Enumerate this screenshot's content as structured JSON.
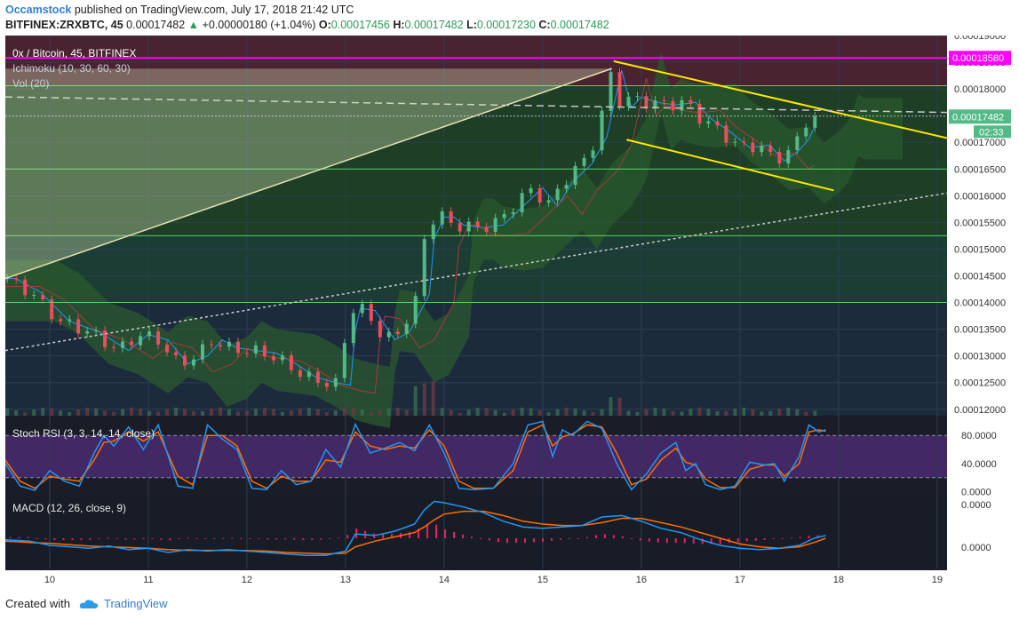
{
  "header": {
    "author": "Occamstock",
    "published": "published on TradingView.com, July 17, 2018 21:42 UTC",
    "ticker": "BITFINEX:ZRXBTC, 45",
    "last": "0.00017482",
    "change": "+0.00000180 (+1.04%)",
    "o_label": "O:",
    "o": "0.00017456",
    "h_label": "H:",
    "h": "0.00017482",
    "l_label": "L:",
    "l": "0.00017230",
    "c_label": "C:",
    "c": "0.00017482"
  },
  "footer": {
    "created_with": "Created with",
    "brand": "TradingView"
  },
  "chart_data": {
    "type": "candlestick",
    "legend": [
      "0x / Bitcoin, 45, BITFINEX",
      "Ichimoku (10, 30, 60, 30)",
      "Vol (20)"
    ],
    "y_ticks": [
      0.00012,
      0.000125,
      0.00013,
      0.000135,
      0.00014,
      0.000145,
      0.00015,
      0.000155,
      0.00016,
      0.000165,
      0.00017,
      0.000175,
      0.00018,
      0.000185,
      0.00019
    ],
    "y_tick_labels": [
      "0.00012000",
      "0.00012500",
      "0.00013000",
      "0.00013500",
      "0.00014000",
      "0.00014500",
      "0.00015000",
      "0.00015500",
      "0.00016000",
      "0.00016500",
      "0.00017000",
      "0.00017500",
      "0.00018000",
      "0.00018500",
      "0.00019000"
    ],
    "ylim": [
      0.0001188,
      0.00019
    ],
    "x_ticks": [
      "10",
      "11",
      "12",
      "13",
      "14",
      "15",
      "16",
      "17",
      "18",
      "19"
    ],
    "xlim": [
      9.55,
      19.1
    ],
    "price_label": "0.00017482",
    "countdown": "02:33",
    "level_label": "0.00018580",
    "levels": [
      0.0001858,
      0.0001806,
      0.0001749,
      0.000165,
      0.0001525,
      0.00014
    ],
    "close_path": [
      [
        9.55,
        0.0001445
      ],
      [
        9.8,
        0.000142
      ],
      [
        10.1,
        0.0001365
      ],
      [
        10.4,
        0.0001345
      ],
      [
        10.7,
        0.000131
      ],
      [
        10.9,
        0.000134
      ],
      [
        11.1,
        0.000133
      ],
      [
        11.3,
        0.0001285
      ],
      [
        11.5,
        0.00013
      ],
      [
        11.65,
        0.000133
      ],
      [
        11.8,
        0.0001315
      ],
      [
        12.0,
        0.000131
      ],
      [
        12.2,
        0.0001305
      ],
      [
        12.4,
        0.0001285
      ],
      [
        12.6,
        0.000126
      ],
      [
        12.8,
        0.000125
      ],
      [
        12.95,
        0.0001245
      ],
      [
        13.02,
        0.000139
      ],
      [
        13.2,
        0.0001385
      ],
      [
        13.4,
        0.000133
      ],
      [
        13.55,
        0.0001345
      ],
      [
        13.65,
        0.000138
      ],
      [
        13.75,
        0.0001415
      ],
      [
        13.8,
        0.000152
      ],
      [
        13.9,
        0.000156
      ],
      [
        14.0,
        0.000156
      ],
      [
        14.1,
        0.0001545
      ],
      [
        14.3,
        0.000154
      ],
      [
        14.5,
        0.0001545
      ],
      [
        14.7,
        0.000158
      ],
      [
        14.9,
        0.0001615
      ],
      [
        15.05,
        0.000158
      ],
      [
        15.2,
        0.0001625
      ],
      [
        15.4,
        0.000166
      ],
      [
        15.55,
        0.000171
      ],
      [
        15.7,
        0.0001835
      ],
      [
        15.8,
        0.0001765
      ],
      [
        15.9,
        0.0001785
      ],
      [
        16.05,
        0.0001775
      ],
      [
        16.25,
        0.000177
      ],
      [
        16.45,
        0.0001775
      ],
      [
        16.6,
        0.0001745
      ],
      [
        16.8,
        0.000172
      ],
      [
        17.0,
        0.000169
      ],
      [
        17.2,
        0.0001695
      ],
      [
        17.35,
        0.0001665
      ],
      [
        17.5,
        0.0001685
      ],
      [
        17.62,
        0.000171
      ],
      [
        17.7,
        0.0001755
      ],
      [
        17.76,
        0.0001748
      ]
    ],
    "trendlines": [
      {
        "from": [
          15.72,
          0.0001852
        ],
        "to": [
          19.1,
          0.0001708
        ]
      },
      {
        "from": [
          15.85,
          0.0001705
        ],
        "to": [
          17.95,
          0.000161
        ]
      },
      {
        "from": [
          9.55,
          0.0001445
        ],
        "to": [
          15.7,
          0.0001838
        ]
      },
      {
        "from": [
          9.55,
          0.0001785
        ],
        "to": [
          19.1,
          0.0001756
        ]
      },
      {
        "from": [
          9.55,
          0.000131
        ],
        "to": [
          19.1,
          0.0001605
        ]
      }
    ],
    "stoch_rsi": {
      "label": "Stoch RSI (3, 3, 14, 14, close)",
      "y_tick_labels": [
        "80.0000",
        "40.0000",
        "0.0000"
      ],
      "y_ticks": [
        80,
        40,
        0
      ],
      "ylim": [
        -3,
        103
      ],
      "bands": [
        80,
        20
      ],
      "k": [
        [
          9.55,
          40
        ],
        [
          9.7,
          8
        ],
        [
          9.85,
          2
        ],
        [
          10.0,
          30
        ],
        [
          10.15,
          15
        ],
        [
          10.3,
          8
        ],
        [
          10.45,
          55
        ],
        [
          10.55,
          80
        ],
        [
          10.65,
          65
        ],
        [
          10.8,
          92
        ],
        [
          10.95,
          60
        ],
        [
          11.1,
          95
        ],
        [
          11.3,
          8
        ],
        [
          11.45,
          5
        ],
        [
          11.6,
          95
        ],
        [
          11.75,
          75
        ],
        [
          11.9,
          60
        ],
        [
          12.05,
          5
        ],
        [
          12.2,
          3
        ],
        [
          12.35,
          30
        ],
        [
          12.5,
          10
        ],
        [
          12.65,
          15
        ],
        [
          12.8,
          60
        ],
        [
          12.95,
          35
        ],
        [
          13.1,
          96
        ],
        [
          13.25,
          55
        ],
        [
          13.4,
          62
        ],
        [
          13.55,
          70
        ],
        [
          13.7,
          58
        ],
        [
          13.85,
          95
        ],
        [
          14.0,
          55
        ],
        [
          14.15,
          5
        ],
        [
          14.3,
          3
        ],
        [
          14.5,
          5
        ],
        [
          14.7,
          40
        ],
        [
          14.85,
          95
        ],
        [
          15.0,
          100
        ],
        [
          15.1,
          50
        ],
        [
          15.2,
          88
        ],
        [
          15.3,
          80
        ],
        [
          15.45,
          100
        ],
        [
          15.6,
          90
        ],
        [
          15.75,
          40
        ],
        [
          15.9,
          3
        ],
        [
          16.05,
          25
        ],
        [
          16.2,
          55
        ],
        [
          16.35,
          70
        ],
        [
          16.45,
          30
        ],
        [
          16.55,
          40
        ],
        [
          16.65,
          10
        ],
        [
          16.8,
          3
        ],
        [
          16.95,
          8
        ],
        [
          17.1,
          42
        ],
        [
          17.25,
          38
        ],
        [
          17.35,
          40
        ],
        [
          17.45,
          15
        ],
        [
          17.6,
          50
        ],
        [
          17.7,
          95
        ],
        [
          17.8,
          85
        ],
        [
          17.87,
          88
        ]
      ],
      "d": [
        [
          9.55,
          45
        ],
        [
          9.7,
          15
        ],
        [
          9.85,
          5
        ],
        [
          10.0,
          22
        ],
        [
          10.15,
          18
        ],
        [
          10.3,
          15
        ],
        [
          10.45,
          45
        ],
        [
          10.55,
          70
        ],
        [
          10.65,
          72
        ],
        [
          10.8,
          85
        ],
        [
          10.95,
          72
        ],
        [
          11.1,
          85
        ],
        [
          11.3,
          22
        ],
        [
          11.45,
          10
        ],
        [
          11.6,
          80
        ],
        [
          11.75,
          80
        ],
        [
          11.9,
          65
        ],
        [
          12.05,
          15
        ],
        [
          12.2,
          5
        ],
        [
          12.35,
          22
        ],
        [
          12.5,
          15
        ],
        [
          12.65,
          15
        ],
        [
          12.8,
          45
        ],
        [
          12.95,
          42
        ],
        [
          13.1,
          85
        ],
        [
          13.25,
          65
        ],
        [
          13.4,
          60
        ],
        [
          13.55,
          65
        ],
        [
          13.7,
          62
        ],
        [
          13.85,
          88
        ],
        [
          14.0,
          65
        ],
        [
          14.15,
          15
        ],
        [
          14.3,
          5
        ],
        [
          14.5,
          5
        ],
        [
          14.7,
          30
        ],
        [
          14.85,
          85
        ],
        [
          15.0,
          95
        ],
        [
          15.1,
          65
        ],
        [
          15.2,
          78
        ],
        [
          15.3,
          82
        ],
        [
          15.45,
          95
        ],
        [
          15.6,
          92
        ],
        [
          15.75,
          55
        ],
        [
          15.9,
          10
        ],
        [
          16.05,
          18
        ],
        [
          16.2,
          45
        ],
        [
          16.35,
          62
        ],
        [
          16.45,
          42
        ],
        [
          16.55,
          38
        ],
        [
          16.65,
          18
        ],
        [
          16.8,
          6
        ],
        [
          16.95,
          6
        ],
        [
          17.1,
          32
        ],
        [
          17.25,
          38
        ],
        [
          17.35,
          38
        ],
        [
          17.45,
          22
        ],
        [
          17.6,
          40
        ],
        [
          17.7,
          85
        ],
        [
          17.8,
          88
        ],
        [
          17.87,
          86
        ]
      ]
    },
    "macd": {
      "label": "MACD (12, 26, close, 9)",
      "y_tick_labels": [
        "0.0000",
        "0.0000"
      ],
      "macd": [
        [
          9.55,
          -1
        ],
        [
          9.8,
          -2
        ],
        [
          10.0,
          -5
        ],
        [
          10.2,
          -6
        ],
        [
          10.4,
          -7
        ],
        [
          10.6,
          -5.5
        ],
        [
          10.8,
          -8
        ],
        [
          11.0,
          -7
        ],
        [
          11.2,
          -10
        ],
        [
          11.4,
          -8
        ],
        [
          11.6,
          -9
        ],
        [
          11.8,
          -8
        ],
        [
          12.0,
          -9
        ],
        [
          12.2,
          -10
        ],
        [
          12.4,
          -11
        ],
        [
          12.6,
          -12
        ],
        [
          12.8,
          -12
        ],
        [
          13.0,
          -9
        ],
        [
          13.1,
          3
        ],
        [
          13.3,
          2
        ],
        [
          13.5,
          5
        ],
        [
          13.7,
          10
        ],
        [
          13.8,
          20
        ],
        [
          13.9,
          26
        ],
        [
          14.0,
          25
        ],
        [
          14.2,
          22
        ],
        [
          14.4,
          18
        ],
        [
          14.6,
          12
        ],
        [
          14.8,
          8
        ],
        [
          15.0,
          7
        ],
        [
          15.2,
          8
        ],
        [
          15.4,
          9
        ],
        [
          15.6,
          15
        ],
        [
          15.8,
          16
        ],
        [
          16.0,
          12
        ],
        [
          16.2,
          7
        ],
        [
          16.4,
          4
        ],
        [
          16.6,
          -1
        ],
        [
          16.8,
          -5
        ],
        [
          17.0,
          -7
        ],
        [
          17.2,
          -8
        ],
        [
          17.4,
          -7
        ],
        [
          17.6,
          -5
        ],
        [
          17.75,
          0
        ],
        [
          17.87,
          2
        ]
      ],
      "signal": [
        [
          9.55,
          -2
        ],
        [
          9.8,
          -3
        ],
        [
          10.0,
          -3.5
        ],
        [
          10.2,
          -4.5
        ],
        [
          10.4,
          -5.5
        ],
        [
          10.6,
          -6
        ],
        [
          10.8,
          -6.5
        ],
        [
          11.0,
          -7
        ],
        [
          11.2,
          -8
        ],
        [
          11.4,
          -8.5
        ],
        [
          11.6,
          -8.5
        ],
        [
          11.8,
          -8.5
        ],
        [
          12.0,
          -8.7
        ],
        [
          12.2,
          -9
        ],
        [
          12.4,
          -10
        ],
        [
          12.6,
          -10.5
        ],
        [
          12.8,
          -11
        ],
        [
          13.0,
          -10.5
        ],
        [
          13.1,
          -6
        ],
        [
          13.3,
          -2
        ],
        [
          13.5,
          1
        ],
        [
          13.7,
          4
        ],
        [
          13.8,
          8
        ],
        [
          13.9,
          13
        ],
        [
          14.0,
          17
        ],
        [
          14.2,
          19
        ],
        [
          14.4,
          19
        ],
        [
          14.6,
          16
        ],
        [
          14.8,
          12
        ],
        [
          15.0,
          10
        ],
        [
          15.2,
          9
        ],
        [
          15.4,
          9
        ],
        [
          15.6,
          11
        ],
        [
          15.8,
          14
        ],
        [
          16.0,
          14
        ],
        [
          16.2,
          11
        ],
        [
          16.4,
          8
        ],
        [
          16.6,
          4
        ],
        [
          16.8,
          0
        ],
        [
          17.0,
          -4
        ],
        [
          17.2,
          -6
        ],
        [
          17.4,
          -7
        ],
        [
          17.6,
          -6
        ],
        [
          17.75,
          -3
        ],
        [
          17.87,
          0
        ]
      ]
    },
    "colors": {
      "grid": "#2c3e52",
      "up": "#53b987",
      "down": "#eb4d5c",
      "trend": "#ffe800",
      "stoch_k": "#2196f3",
      "stoch_d": "#ff6d00",
      "level_magenta": "#ff00ff",
      "level_green": "#5dcd6a"
    }
  }
}
